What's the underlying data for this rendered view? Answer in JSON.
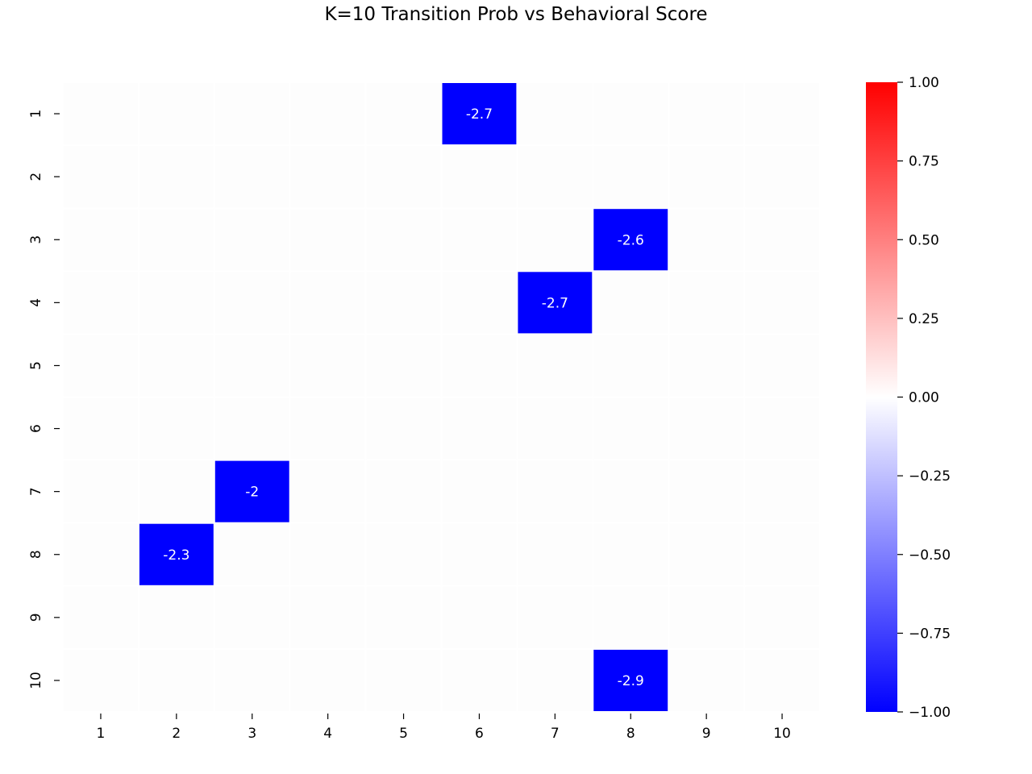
{
  "chart_data": {
    "type": "heatmap",
    "title": "K=10 Transition Prob vs Behavioral Score",
    "xlabel": "",
    "ylabel": "",
    "x_categories": [
      "1",
      "2",
      "3",
      "4",
      "5",
      "6",
      "7",
      "8",
      "9",
      "10"
    ],
    "y_categories": [
      "1",
      "2",
      "3",
      "4",
      "5",
      "6",
      "7",
      "8",
      "9",
      "10"
    ],
    "cells": [
      {
        "row": "1",
        "col": "6",
        "value": -2.7,
        "label": "-2.7"
      },
      {
        "row": "3",
        "col": "8",
        "value": -2.6,
        "label": "-2.6"
      },
      {
        "row": "4",
        "col": "7",
        "value": -2.7,
        "label": "-2.7"
      },
      {
        "row": "7",
        "col": "3",
        "value": -2.0,
        "label": "-2"
      },
      {
        "row": "8",
        "col": "2",
        "value": -2.3,
        "label": "-2.3"
      },
      {
        "row": "10",
        "col": "8",
        "value": -2.9,
        "label": "-2.9"
      }
    ],
    "other_cells_value": 0.0,
    "colormap": "bwr",
    "vmin": -1.0,
    "vmax": 1.0,
    "colorbar": {
      "ticks": [
        1.0,
        0.75,
        0.5,
        0.25,
        0.0,
        -0.25,
        -0.5,
        -0.75,
        -1.0
      ],
      "tick_labels": [
        "1.00",
        "0.75",
        "0.50",
        "0.25",
        "0.00",
        "−0.25",
        "−0.50",
        "−0.75",
        "−1.00"
      ],
      "colors": {
        "low": "#0000ff",
        "mid": "#ffffff",
        "high": "#ff0000"
      }
    },
    "grid": false
  }
}
